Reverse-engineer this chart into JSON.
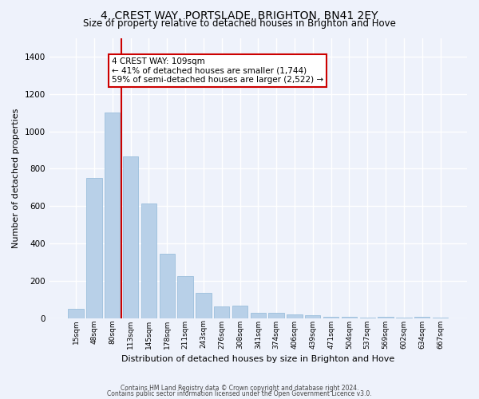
{
  "title": "4, CREST WAY, PORTSLADE, BRIGHTON, BN41 2EY",
  "subtitle": "Size of property relative to detached houses in Brighton and Hove",
  "xlabel": "Distribution of detached houses by size in Brighton and Hove",
  "ylabel": "Number of detached properties",
  "categories": [
    "15sqm",
    "48sqm",
    "80sqm",
    "113sqm",
    "145sqm",
    "178sqm",
    "211sqm",
    "243sqm",
    "276sqm",
    "308sqm",
    "341sqm",
    "374sqm",
    "406sqm",
    "439sqm",
    "471sqm",
    "504sqm",
    "537sqm",
    "569sqm",
    "602sqm",
    "634sqm",
    "667sqm"
  ],
  "bar_heights": [
    50,
    750,
    1100,
    865,
    615,
    345,
    225,
    135,
    65,
    70,
    30,
    30,
    20,
    15,
    10,
    10,
    5,
    10,
    5,
    10,
    5
  ],
  "bar_color": "#b8d0e8",
  "bar_edgecolor": "#90b8d8",
  "vline_color": "#cc0000",
  "annotation_text": "4 CREST WAY: 109sqm\n← 41% of detached houses are smaller (1,744)\n59% of semi-detached houses are larger (2,522) →",
  "annotation_box_color": "#ffffff",
  "annotation_box_edgecolor": "#cc0000",
  "ylim": [
    0,
    1500
  ],
  "yticks": [
    0,
    200,
    400,
    600,
    800,
    1000,
    1200,
    1400
  ],
  "background_color": "#eef2fb",
  "grid_color": "#ffffff",
  "footer1": "Contains HM Land Registry data © Crown copyright and database right 2024.",
  "footer2": "Contains public sector information licensed under the Open Government Licence v3.0.",
  "title_fontsize": 10,
  "subtitle_fontsize": 8.5,
  "xlabel_fontsize": 8,
  "ylabel_fontsize": 8
}
